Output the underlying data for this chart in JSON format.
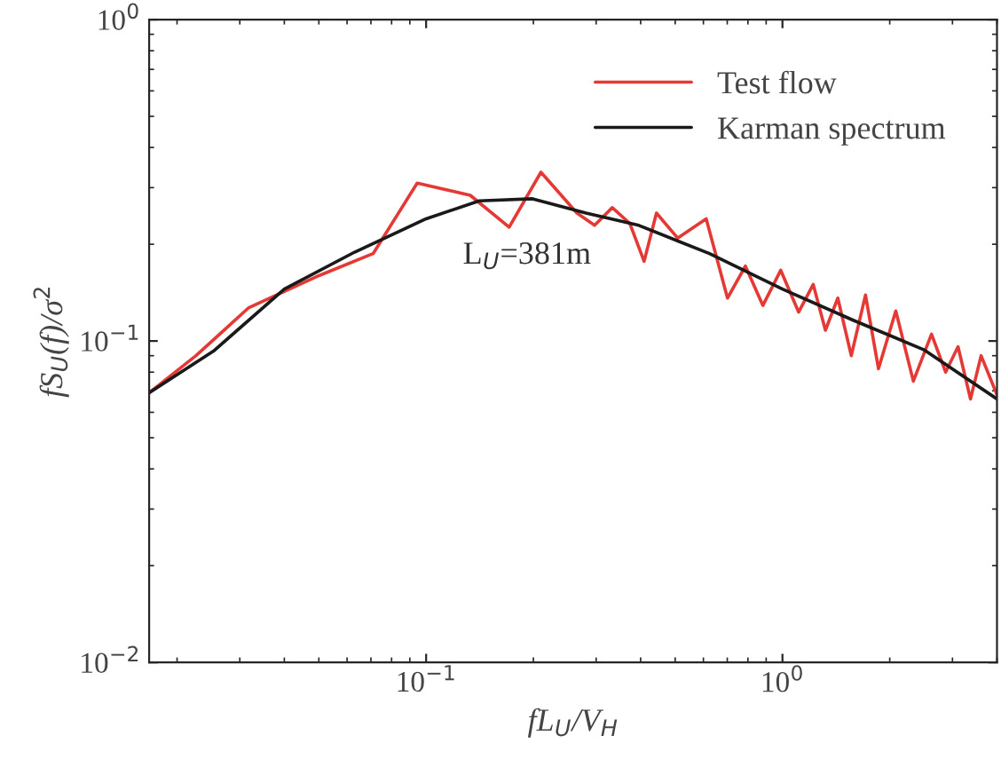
{
  "chart_data": {
    "type": "line",
    "xlabel": "fL$_{U}$/V$_{H}$",
    "ylabel": "fS$_{U}$(f)/σ$^{2}$",
    "log": "xy",
    "xlim": [
      0.0167,
      4.0
    ],
    "ylim": [
      0.01,
      1
    ],
    "xticks": [
      {
        "value": 0.1,
        "label": "10$^{−1}$"
      },
      {
        "value": 1,
        "label": "10$^{0}$"
      }
    ],
    "yticks": [
      {
        "value": 0.01,
        "label": "10$^{−2}$"
      },
      {
        "value": 0.1,
        "label": "10$^{−1}$"
      },
      {
        "value": 1,
        "label": "10$^{0}$"
      }
    ],
    "grid": false,
    "legend": "top right",
    "annotations": [
      "L$_{U}$=381m"
    ],
    "series": [
      {
        "name": "Test flow",
        "color": "#e53935",
        "x": [
          0.0167,
          0.0226,
          0.0318,
          0.0502,
          0.071,
          0.0944,
          0.133,
          0.171,
          0.21,
          0.265,
          0.297,
          0.333,
          0.373,
          0.409,
          0.443,
          0.508,
          0.611,
          0.701,
          0.787,
          0.881,
          0.989,
          1.11,
          1.22,
          1.32,
          1.43,
          1.56,
          1.71,
          1.86,
          2.08,
          2.33,
          2.62,
          2.87,
          3.11,
          3.37,
          3.61,
          4.0
        ],
        "values": [
          0.069,
          0.09,
          0.127,
          0.16,
          0.187,
          0.31,
          0.284,
          0.226,
          0.335,
          0.25,
          0.229,
          0.26,
          0.232,
          0.177,
          0.25,
          0.209,
          0.24,
          0.136,
          0.171,
          0.129,
          0.166,
          0.123,
          0.15,
          0.108,
          0.136,
          0.09,
          0.139,
          0.082,
          0.124,
          0.075,
          0.105,
          0.08,
          0.096,
          0.066,
          0.09,
          0.068
        ]
      },
      {
        "name": "Karman spectrum",
        "color": "#1a1a1a",
        "x": [
          0.0167,
          0.0253,
          0.04,
          0.063,
          0.1,
          0.141,
          0.199,
          0.281,
          0.395,
          0.624,
          1.0,
          1.58,
          2.49,
          4.0
        ],
        "values": [
          0.069,
          0.093,
          0.145,
          0.189,
          0.24,
          0.273,
          0.277,
          0.25,
          0.229,
          0.187,
          0.145,
          0.116,
          0.094,
          0.066
        ]
      }
    ]
  }
}
